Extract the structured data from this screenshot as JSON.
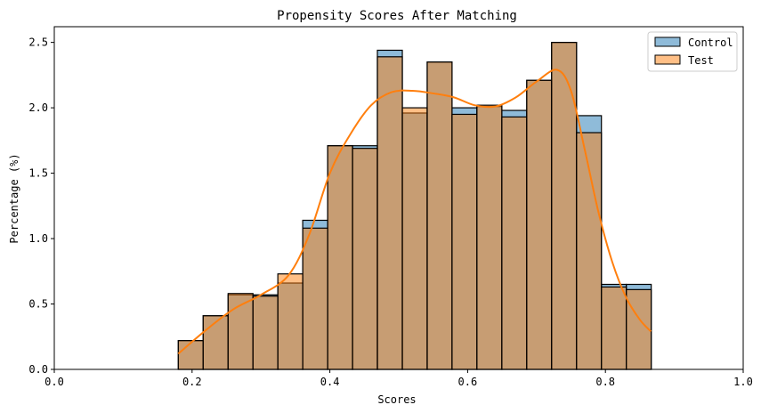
{
  "chart_data": {
    "type": "histogram",
    "title": "Propensity Scores After Matching",
    "xlabel": "Scores",
    "ylabel": "Percentage (%)",
    "xlim": [
      0.0,
      1.0
    ],
    "ylim": [
      0.0,
      2.62
    ],
    "xticks": [
      "0.0",
      "0.2",
      "0.4",
      "0.6",
      "0.8",
      "1.0"
    ],
    "yticks": [
      "0.0",
      "0.5",
      "1.0",
      "1.5",
      "2.0",
      "2.5"
    ],
    "grid": false,
    "legend_position": "top-right",
    "bin_edges": [
      0.18,
      0.2161,
      0.2523,
      0.2884,
      0.3245,
      0.3606,
      0.3968,
      0.4329,
      0.469,
      0.5052,
      0.5413,
      0.5774,
      0.6135,
      0.6497,
      0.6858,
      0.7219,
      0.7581,
      0.7942,
      0.8303,
      0.8665
    ],
    "series": [
      {
        "name": "Control",
        "color": "#1f77b4",
        "values": [
          0.22,
          0.41,
          0.57,
          0.57,
          0.66,
          1.14,
          1.71,
          1.71,
          2.44,
          1.96,
          2.35,
          2.0,
          2.01,
          1.98,
          2.21,
          2.5,
          1.94,
          0.65,
          0.65
        ]
      },
      {
        "name": "Test",
        "color": "#ff7f0e",
        "values": [
          0.22,
          0.41,
          0.58,
          0.56,
          0.73,
          1.08,
          1.71,
          1.69,
          2.39,
          2.0,
          2.35,
          1.95,
          2.02,
          1.93,
          2.21,
          2.5,
          1.81,
          0.63,
          0.61
        ]
      }
    ],
    "kde": {
      "color": "#ff7f0e",
      "x": [
        0.18,
        0.22,
        0.26,
        0.3,
        0.34,
        0.37,
        0.4,
        0.43,
        0.46,
        0.49,
        0.52,
        0.55,
        0.58,
        0.61,
        0.64,
        0.67,
        0.7,
        0.73,
        0.75,
        0.77,
        0.79,
        0.81,
        0.83,
        0.85,
        0.866
      ],
      "y": [
        0.12,
        0.3,
        0.46,
        0.57,
        0.72,
        1.03,
        1.5,
        1.8,
        2.02,
        2.12,
        2.13,
        2.11,
        2.08,
        2.02,
        2.01,
        2.08,
        2.2,
        2.29,
        2.13,
        1.68,
        1.2,
        0.82,
        0.55,
        0.38,
        0.29
      ]
    }
  }
}
